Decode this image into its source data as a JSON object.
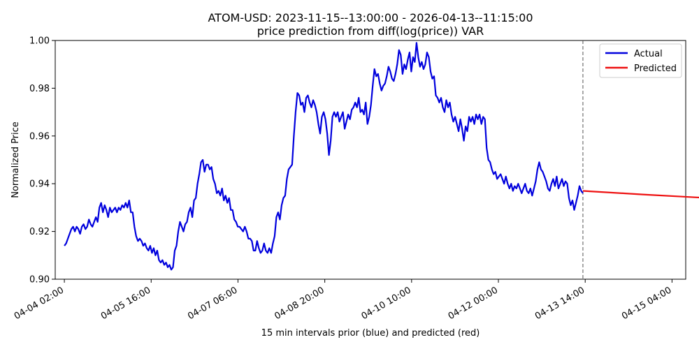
{
  "chart_data": {
    "type": "line",
    "title": "ATOM-USD: 2023-11-15--13:00:00 - 2026-04-13--11:15:00",
    "subtitle": "price prediction from diff(log(price)) VAR",
    "xlabel": "15 min intervals prior (blue) and predicted (red)",
    "ylabel": "Normalized Price",
    "ylim": [
      0.9,
      1.0
    ],
    "yticks": [
      "0.90",
      "0.92",
      "0.94",
      "0.96",
      "0.98",
      "1.00"
    ],
    "xticks": [
      "04-04 02:00",
      "04-05 16:00",
      "04-07 06:00",
      "04-08 20:00",
      "04-10 10:00",
      "04-12 00:00",
      "04-13 14:00",
      "04-15 04:00"
    ],
    "xlim_hours": [
      -4,
      272
    ],
    "forecast_start_hours": 227,
    "legend_position": "top-right",
    "series": [
      {
        "name": "Actual",
        "color": "#0000dd",
        "points": [
          [
            0,
            0.914
          ],
          [
            1,
            0.915
          ],
          [
            2,
            0.917
          ],
          [
            3,
            0.919
          ],
          [
            4,
            0.921
          ],
          [
            5,
            0.922
          ],
          [
            6,
            0.92
          ],
          [
            7,
            0.922
          ],
          [
            8,
            0.921
          ],
          [
            9,
            0.919
          ],
          [
            10,
            0.922
          ],
          [
            11,
            0.923
          ],
          [
            12,
            0.921
          ],
          [
            13,
            0.922
          ],
          [
            14,
            0.925
          ],
          [
            15,
            0.923
          ],
          [
            16,
            0.922
          ],
          [
            17,
            0.924
          ],
          [
            18,
            0.926
          ],
          [
            19,
            0.924
          ],
          [
            20,
            0.93
          ],
          [
            21,
            0.932
          ],
          [
            22,
            0.928
          ],
          [
            23,
            0.931
          ],
          [
            24,
            0.929
          ],
          [
            25,
            0.926
          ],
          [
            26,
            0.93
          ],
          [
            27,
            0.928
          ],
          [
            28,
            0.929
          ],
          [
            29,
            0.93
          ],
          [
            30,
            0.928
          ],
          [
            31,
            0.93
          ],
          [
            32,
            0.929
          ],
          [
            33,
            0.931
          ],
          [
            34,
            0.93
          ],
          [
            35,
            0.932
          ],
          [
            36,
            0.93
          ],
          [
            37,
            0.933
          ],
          [
            38,
            0.928
          ],
          [
            39,
            0.928
          ],
          [
            40,
            0.922
          ],
          [
            41,
            0.918
          ],
          [
            42,
            0.916
          ],
          [
            43,
            0.917
          ],
          [
            44,
            0.916
          ],
          [
            45,
            0.914
          ],
          [
            46,
            0.915
          ],
          [
            47,
            0.913
          ],
          [
            48,
            0.912
          ],
          [
            49,
            0.914
          ],
          [
            50,
            0.911
          ],
          [
            51,
            0.913
          ],
          [
            52,
            0.91
          ],
          [
            53,
            0.912
          ],
          [
            54,
            0.908
          ],
          [
            55,
            0.907
          ],
          [
            56,
            0.908
          ],
          [
            57,
            0.906
          ],
          [
            58,
            0.907
          ],
          [
            59,
            0.905
          ],
          [
            60,
            0.906
          ],
          [
            61,
            0.904
          ],
          [
            62,
            0.905
          ],
          [
            63,
            0.912
          ],
          [
            64,
            0.914
          ],
          [
            65,
            0.92
          ],
          [
            66,
            0.924
          ],
          [
            67,
            0.922
          ],
          [
            68,
            0.92
          ],
          [
            69,
            0.923
          ],
          [
            70,
            0.924
          ],
          [
            71,
            0.928
          ],
          [
            72,
            0.93
          ],
          [
            73,
            0.926
          ],
          [
            74,
            0.933
          ],
          [
            75,
            0.934
          ],
          [
            76,
            0.94
          ],
          [
            77,
            0.944
          ],
          [
            78,
            0.949
          ],
          [
            79,
            0.95
          ],
          [
            80,
            0.945
          ],
          [
            81,
            0.948
          ],
          [
            82,
            0.948
          ],
          [
            83,
            0.946
          ],
          [
            84,
            0.947
          ],
          [
            85,
            0.942
          ],
          [
            86,
            0.94
          ],
          [
            87,
            0.936
          ],
          [
            88,
            0.937
          ],
          [
            89,
            0.935
          ],
          [
            90,
            0.938
          ],
          [
            91,
            0.933
          ],
          [
            92,
            0.935
          ],
          [
            93,
            0.932
          ],
          [
            94,
            0.934
          ],
          [
            95,
            0.929
          ],
          [
            96,
            0.929
          ],
          [
            97,
            0.925
          ],
          [
            98,
            0.924
          ],
          [
            99,
            0.922
          ],
          [
            100,
            0.922
          ],
          [
            101,
            0.921
          ],
          [
            102,
            0.92
          ],
          [
            103,
            0.922
          ],
          [
            104,
            0.92
          ],
          [
            105,
            0.917
          ],
          [
            106,
            0.917
          ],
          [
            107,
            0.916
          ],
          [
            108,
            0.912
          ],
          [
            109,
            0.912
          ],
          [
            110,
            0.916
          ],
          [
            111,
            0.913
          ],
          [
            112,
            0.911
          ],
          [
            113,
            0.912
          ],
          [
            114,
            0.915
          ],
          [
            115,
            0.912
          ],
          [
            116,
            0.911
          ],
          [
            117,
            0.913
          ],
          [
            118,
            0.911
          ],
          [
            119,
            0.915
          ],
          [
            120,
            0.918
          ],
          [
            121,
            0.926
          ],
          [
            122,
            0.928
          ],
          [
            123,
            0.925
          ],
          [
            124,
            0.931
          ],
          [
            125,
            0.934
          ],
          [
            126,
            0.935
          ],
          [
            127,
            0.942
          ],
          [
            128,
            0.946
          ],
          [
            129,
            0.947
          ],
          [
            130,
            0.948
          ],
          [
            131,
            0.96
          ],
          [
            132,
            0.97
          ],
          [
            133,
            0.978
          ],
          [
            134,
            0.977
          ],
          [
            135,
            0.973
          ],
          [
            136,
            0.974
          ],
          [
            137,
            0.97
          ],
          [
            138,
            0.976
          ],
          [
            139,
            0.977
          ],
          [
            140,
            0.974
          ],
          [
            141,
            0.972
          ],
          [
            142,
            0.975
          ],
          [
            143,
            0.973
          ],
          [
            144,
            0.97
          ],
          [
            145,
            0.965
          ],
          [
            146,
            0.961
          ],
          [
            147,
            0.968
          ],
          [
            148,
            0.97
          ],
          [
            149,
            0.967
          ],
          [
            150,
            0.961
          ],
          [
            151,
            0.952
          ],
          [
            152,
            0.958
          ],
          [
            153,
            0.968
          ],
          [
            154,
            0.97
          ],
          [
            155,
            0.968
          ],
          [
            156,
            0.97
          ],
          [
            157,
            0.966
          ],
          [
            158,
            0.968
          ],
          [
            159,
            0.97
          ],
          [
            160,
            0.963
          ],
          [
            161,
            0.966
          ],
          [
            162,
            0.969
          ],
          [
            163,
            0.967
          ],
          [
            164,
            0.971
          ],
          [
            165,
            0.972
          ],
          [
            166,
            0.974
          ],
          [
            167,
            0.972
          ],
          [
            168,
            0.976
          ],
          [
            169,
            0.97
          ],
          [
            170,
            0.971
          ],
          [
            171,
            0.969
          ],
          [
            172,
            0.974
          ],
          [
            173,
            0.965
          ],
          [
            174,
            0.968
          ],
          [
            175,
            0.973
          ],
          [
            176,
            0.981
          ],
          [
            177,
            0.988
          ],
          [
            178,
            0.985
          ],
          [
            179,
            0.986
          ],
          [
            180,
            0.982
          ],
          [
            181,
            0.979
          ],
          [
            182,
            0.981
          ],
          [
            183,
            0.982
          ],
          [
            184,
            0.985
          ],
          [
            185,
            0.989
          ],
          [
            186,
            0.987
          ],
          [
            187,
            0.984
          ],
          [
            188,
            0.983
          ],
          [
            189,
            0.986
          ],
          [
            190,
            0.99
          ],
          [
            191,
            0.996
          ],
          [
            192,
            0.994
          ],
          [
            193,
            0.986
          ],
          [
            194,
            0.99
          ],
          [
            195,
            0.988
          ],
          [
            196,
            0.992
          ],
          [
            197,
            0.995
          ],
          [
            198,
            0.987
          ],
          [
            199,
            0.993
          ],
          [
            200,
            0.991
          ],
          [
            201,
            0.999
          ],
          [
            202,
            0.993
          ],
          [
            203,
            0.989
          ],
          [
            204,
            0.991
          ],
          [
            205,
            0.988
          ],
          [
            206,
            0.99
          ],
          [
            207,
            0.995
          ],
          [
            208,
            0.993
          ],
          [
            209,
            0.987
          ],
          [
            210,
            0.984
          ],
          [
            211,
            0.985
          ],
          [
            212,
            0.977
          ],
          [
            213,
            0.976
          ],
          [
            214,
            0.974
          ],
          [
            215,
            0.976
          ],
          [
            216,
            0.972
          ],
          [
            217,
            0.97
          ],
          [
            218,
            0.975
          ],
          [
            219,
            0.972
          ],
          [
            220,
            0.974
          ],
          [
            221,
            0.969
          ],
          [
            222,
            0.966
          ],
          [
            223,
            0.968
          ],
          [
            224,
            0.965
          ],
          [
            225,
            0.962
          ],
          [
            226,
            0.967
          ],
          [
            227,
            0.963
          ],
          [
            228,
            0.958
          ],
          [
            229,
            0.964
          ],
          [
            230,
            0.962
          ],
          [
            231,
            0.968
          ],
          [
            232,
            0.966
          ],
          [
            233,
            0.968
          ],
          [
            234,
            0.965
          ],
          [
            235,
            0.969
          ],
          [
            236,
            0.967
          ],
          [
            237,
            0.969
          ],
          [
            238,
            0.965
          ],
          [
            239,
            0.968
          ],
          [
            240,
            0.967
          ],
          [
            241,
            0.955
          ],
          [
            242,
            0.95
          ],
          [
            243,
            0.949
          ],
          [
            244,
            0.946
          ],
          [
            245,
            0.944
          ],
          [
            246,
            0.945
          ],
          [
            247,
            0.942
          ],
          [
            248,
            0.943
          ],
          [
            249,
            0.944
          ],
          [
            250,
            0.942
          ],
          [
            251,
            0.94
          ],
          [
            252,
            0.943
          ],
          [
            253,
            0.94
          ],
          [
            254,
            0.938
          ],
          [
            255,
            0.94
          ],
          [
            256,
            0.937
          ],
          [
            257,
            0.939
          ],
          [
            258,
            0.938
          ],
          [
            259,
            0.94
          ],
          [
            260,
            0.938
          ],
          [
            261,
            0.936
          ],
          [
            262,
            0.938
          ],
          [
            263,
            0.94
          ],
          [
            264,
            0.937
          ],
          [
            265,
            0.936
          ],
          [
            266,
            0.938
          ],
          [
            267,
            0.935
          ],
          [
            268,
            0.938
          ],
          [
            269,
            0.941
          ],
          [
            270,
            0.946
          ],
          [
            271,
            0.949
          ],
          [
            272,
            0.946
          ],
          [
            273,
            0.945
          ],
          [
            274,
            0.943
          ],
          [
            275,
            0.941
          ],
          [
            276,
            0.938
          ],
          [
            277,
            0.937
          ],
          [
            278,
            0.94
          ],
          [
            279,
            0.942
          ],
          [
            280,
            0.939
          ],
          [
            281,
            0.943
          ],
          [
            282,
            0.938
          ],
          [
            283,
            0.94
          ],
          [
            284,
            0.942
          ],
          [
            285,
            0.939
          ],
          [
            286,
            0.941
          ],
          [
            287,
            0.94
          ],
          [
            288,
            0.934
          ],
          [
            289,
            0.931
          ],
          [
            290,
            0.933
          ],
          [
            291,
            0.929
          ],
          [
            292,
            0.932
          ],
          [
            293,
            0.935
          ],
          [
            294,
            0.939
          ],
          [
            295,
            0.937
          ],
          [
            296,
            0.936
          ]
        ]
      },
      {
        "name": "Predicted",
        "color": "#ee1111",
        "points": [
          [
            296,
            0.937
          ],
          [
            300,
            0.9368
          ],
          [
            330,
            0.9355
          ],
          [
            360,
            0.9343
          ],
          [
            386,
            0.9335
          ]
        ]
      }
    ]
  }
}
